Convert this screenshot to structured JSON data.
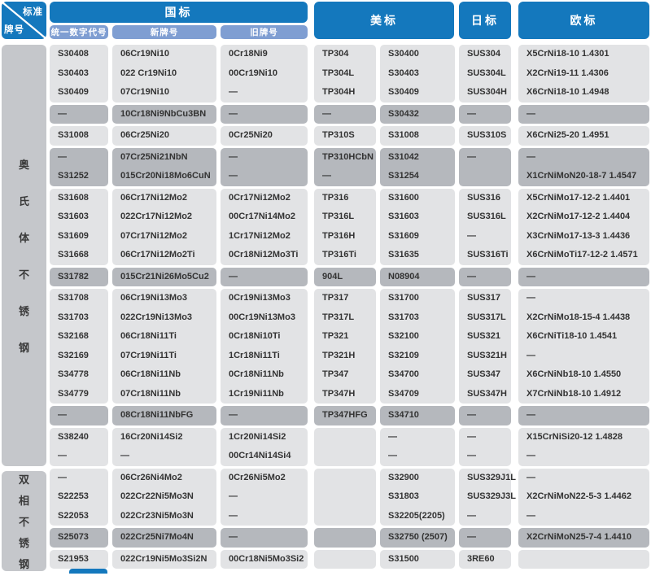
{
  "colors": {
    "header_blue": "#1478bd",
    "subheader_blue": "#7f9ed2",
    "row_light_gray": "#e2e3e5",
    "row_dark_gray": "#b5b8bd",
    "label_gray": "#c5c7cb",
    "text_dark": "#333333"
  },
  "corner": {
    "top": "标准",
    "bottom": "牌号"
  },
  "headers": {
    "gb": "国标",
    "gb_sub": [
      "统一数字代号",
      "新牌号",
      "旧牌号"
    ],
    "us": "美标",
    "jp": "日标",
    "eu": "欧标"
  },
  "sections": [
    {
      "label": "奥氏体不锈钢",
      "rows": [
        {
          "dark": false,
          "cells": [
            "S30408",
            "06Cr19Ni10",
            "0Cr18Ni9",
            "TP304",
            "S30400",
            "SUS304",
            "X5CrNi18-10 1.4301"
          ]
        },
        {
          "dark": false,
          "cells": [
            "S30403",
            "022 Cr19Ni10",
            "00Cr19Ni10",
            "TP304L",
            "S30403",
            "SUS304L",
            "X2CrNi19-11  1.4306"
          ]
        },
        {
          "dark": false,
          "cells": [
            "S30409",
            "07Cr19Ni10",
            "—",
            "TP304H",
            "S30409",
            "SUS304H",
            "X6CrNi18-10  1.4948"
          ]
        },
        {
          "dark": true,
          "cells": [
            "—",
            "10Cr18Ni9NbCu3BN",
            "—",
            "—",
            "S30432",
            "—",
            "—"
          ]
        },
        {
          "dark": false,
          "cells": [
            "S31008",
            "06Cr25Ni20",
            "0Cr25Ni20",
            "TP310S",
            "S31008",
            "SUS310S",
            "X6CrNi25-20 1.4951"
          ]
        },
        {
          "dark": true,
          "cells": [
            "—",
            "07Cr25Ni21NbN",
            "—",
            "TP310HCbN",
            "S31042",
            "—",
            "—"
          ]
        },
        {
          "dark": true,
          "cells": [
            "S31252",
            "015Cr20Ni18Mo6CuN",
            "—",
            "—",
            "S31254",
            "",
            "X1CrNiMoN20-18-7 1.4547"
          ]
        },
        {
          "dark": false,
          "cells": [
            "S31608",
            "06Cr17Ni12Mo2",
            "0Cr17Ni12Mo2",
            "TP316",
            "S31600",
            "SUS316",
            "X5CrNiMo17-12-2 1.4401"
          ]
        },
        {
          "dark": false,
          "cells": [
            "S31603",
            "022Cr17Ni12Mo2",
            "00Cr17Ni14Mo2",
            "TP316L",
            "S31603",
            "SUS316L",
            "X2CrNiMo17-12-2 1.4404"
          ]
        },
        {
          "dark": false,
          "cells": [
            "S31609",
            "07Cr17Ni12Mo2",
            "1Cr17Ni12Mo2",
            "TP316H",
            "S31609",
            "—",
            "X3CrNiMo17-13-3 1.4436"
          ]
        },
        {
          "dark": false,
          "cells": [
            "S31668",
            "06Cr17Ni12Mo2Ti",
            "0Cr18Ni12Mo3Ti",
            "TP316Ti",
            "S31635",
            "SUS316Ti",
            "X6CrNiMoTi17-12-2 1.4571"
          ]
        },
        {
          "dark": true,
          "cells": [
            "S31782",
            "015Cr21Ni26Mo5Cu2",
            "—",
            "904L",
            "N08904",
            "—",
            "—"
          ]
        },
        {
          "dark": false,
          "cells": [
            "S31708",
            "06Cr19Ni13Mo3",
            "0Cr19Ni13Mo3",
            "TP317",
            "S31700",
            "SUS317",
            "—"
          ]
        },
        {
          "dark": false,
          "cells": [
            "S31703",
            "022Cr19Ni13Mo3",
            "00Cr19Ni13Mo3",
            "TP317L",
            "S31703",
            "SUS317L",
            "X2CrNiMo18-15-4 1.4438"
          ]
        },
        {
          "dark": false,
          "cells": [
            "S32168",
            "06Cr18Ni11Ti",
            "0Cr18Ni10Ti",
            "TP321",
            "S32100",
            "SUS321",
            "X6CrNiTi18-10 1.4541"
          ]
        },
        {
          "dark": false,
          "cells": [
            "S32169",
            "07Cr19Ni11Ti",
            "1Cr18Ni11Ti",
            "TP321H",
            "S32109",
            "SUS321H",
            "—"
          ]
        },
        {
          "dark": false,
          "cells": [
            "S34778",
            "06Cr18Ni11Nb",
            "0Cr18Ni11Nb",
            "TP347",
            "S34700",
            "SUS347",
            "X6CrNiNb18-10 1.4550"
          ]
        },
        {
          "dark": false,
          "cells": [
            "S34779",
            "07Cr18Ni11Nb",
            "1Cr19Ni11Nb",
            "TP347H",
            "S34709",
            "SUS347H",
            "X7CrNiNb18-10 1.4912"
          ]
        },
        {
          "dark": true,
          "cells": [
            "—",
            "08Cr18Ni11NbFG",
            "—",
            "TP347HFG",
            "S34710",
            "—",
            "—"
          ]
        },
        {
          "dark": false,
          "cells": [
            "S38240",
            "16Cr20Ni14Si2",
            "1Cr20Ni14Si2",
            "",
            "—",
            "—",
            "X15CrNiSi20-12 1.4828"
          ]
        },
        {
          "dark": false,
          "cells": [
            "—",
            "—",
            "00Cr14Ni14Si4",
            "",
            "—",
            "—",
            "—"
          ]
        }
      ]
    },
    {
      "label": "双相不锈钢",
      "rows": [
        {
          "dark": false,
          "cells": [
            "—",
            "06Cr26Ni4Mo2",
            "0Cr26Ni5Mo2",
            "",
            "S32900",
            "SUS329J1L",
            "—"
          ]
        },
        {
          "dark": false,
          "cells": [
            "S22253",
            "022Cr22Ni5Mo3N",
            "—",
            "",
            "S31803",
            "SUS329J3L",
            "X2CrNiMoN22-5-3 1.4462"
          ]
        },
        {
          "dark": false,
          "cells": [
            "S22053",
            "022Cr23Ni5Mo3N",
            "—",
            "",
            "S32205(2205)",
            "—",
            "—"
          ]
        },
        {
          "dark": true,
          "cells": [
            "S25073",
            "022Cr25Ni7Mo4N",
            "—",
            "",
            "S32750 (2507)",
            "—",
            "X2CrNiMoN25-7-4 1.4410"
          ]
        },
        {
          "dark": false,
          "cells": [
            "S21953",
            "022Cr19Ni5Mo3Si2N",
            "00Cr18Ni5Mo3Si2",
            "",
            "S31500",
            "3RE60",
            ""
          ]
        }
      ]
    }
  ]
}
